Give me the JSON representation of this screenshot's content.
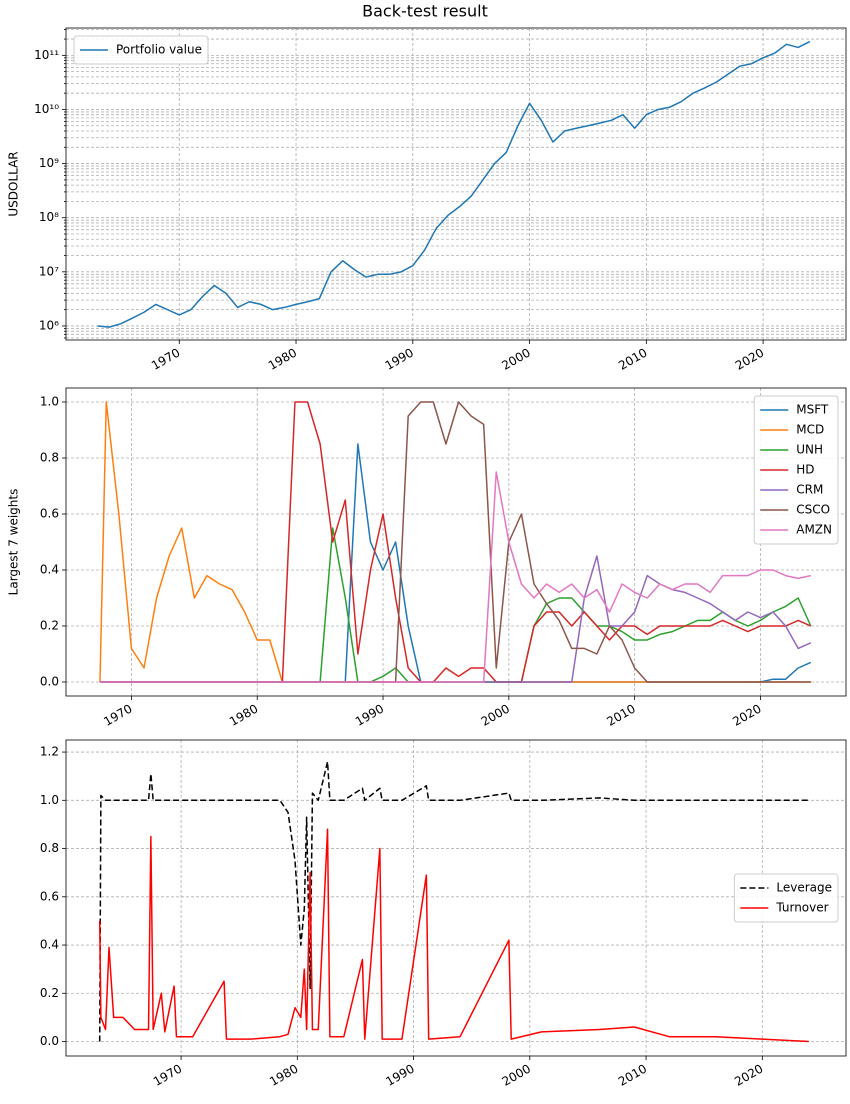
{
  "title": "Back-test result",
  "chart_data": [
    {
      "type": "line",
      "ylabel": "USDOLLAR",
      "yscale": "log",
      "grid": true,
      "legend": "upper left",
      "xlim": [
        1960.3,
        2027.1
      ],
      "xticks": [
        1970,
        1980,
        1990,
        2000,
        2010,
        2020
      ],
      "ylim": [
        550000,
        320000000000.0
      ],
      "yticks": [
        {
          "value": 1000000.0,
          "label": "10⁶"
        },
        {
          "value": 10000000.0,
          "label": "10⁷"
        },
        {
          "value": 100000000.0,
          "label": "10⁸"
        },
        {
          "value": 1000000000.0,
          "label": "10⁹"
        },
        {
          "value": 10000000000.0,
          "label": "10¹⁰"
        },
        {
          "value": 100000000000.0,
          "label": "10¹¹"
        }
      ],
      "yminorticks": [
        600000.0,
        700000.0,
        800000.0,
        900000.0,
        2000000.0,
        3000000.0,
        4000000.0,
        5000000.0,
        6000000.0,
        7000000.0,
        8000000.0,
        9000000.0,
        20000000.0,
        30000000.0,
        40000000.0,
        50000000.0,
        60000000.0,
        70000000.0,
        80000000.0,
        90000000.0,
        200000000.0,
        300000000.0,
        400000000.0,
        500000000.0,
        600000000.0,
        700000000.0,
        800000000.0,
        900000000.0,
        2000000000.0,
        3000000000.0,
        4000000000.0,
        5000000000.0,
        6000000000.0,
        7000000000.0,
        8000000000.0,
        9000000000.0,
        20000000000.0,
        30000000000.0,
        40000000000.0,
        50000000000.0,
        60000000000.0,
        70000000000.0,
        80000000000.0,
        90000000000.0,
        200000000000.0,
        300000000000.0
      ],
      "x": [
        1963,
        1964,
        1965,
        1966,
        1967,
        1968,
        1969,
        1970,
        1971,
        1972,
        1973,
        1974,
        1975,
        1976,
        1977,
        1978,
        1979,
        1980,
        1981,
        1982,
        1983,
        1984,
        1985,
        1986,
        1987,
        1988,
        1989,
        1990,
        1991,
        1992,
        1993,
        1994,
        1995,
        1996,
        1997,
        1998,
        1999,
        2000,
        2001,
        2002,
        2003,
        2004,
        2005,
        2006,
        2007,
        2008,
        2009,
        2010,
        2011,
        2012,
        2013,
        2014,
        2015,
        2016,
        2017,
        2018,
        2019,
        2020,
        2021,
        2022,
        2023,
        2024
      ],
      "series": [
        {
          "name": "Portfolio value",
          "color": "#1f77b4",
          "values": [
            1000000.0,
            950000.0,
            1100000.0,
            1400000.0,
            1800000.0,
            2500000.0,
            2000000.0,
            1600000.0,
            2000000.0,
            3500000.0,
            5600000.0,
            4000000.0,
            2200000.0,
            2800000.0,
            2500000.0,
            2000000.0,
            2200000.0,
            2500000.0,
            2800000.0,
            3200000.0,
            10000000.0,
            16000000.0,
            11000000.0,
            8000000.0,
            9000000.0,
            9000000.0,
            10000000.0,
            13000000.0,
            25000000.0,
            63000000.0,
            110000000.0,
            160000000.0,
            250000000.0,
            500000000.0,
            1000000000.0,
            1600000000.0,
            5000000000.0,
            13000000000.0,
            6300000000.0,
            2500000000.0,
            4000000000.0,
            4500000000.0,
            5000000000.0,
            5600000000.0,
            6300000000.0,
            8000000000.0,
            4500000000.0,
            8000000000.0,
            10000000000.0,
            11000000000.0,
            14000000000.0,
            20000000000.0,
            25000000000.0,
            32000000000.0,
            45000000000.0,
            63000000000.0,
            70000000000.0,
            90000000000.0,
            110000000000.0,
            160000000000.0,
            140000000000.0,
            180000000000.0
          ]
        }
      ]
    },
    {
      "type": "line",
      "ylabel": "Largest 7 weights",
      "grid": true,
      "legend": "upper right",
      "xlim": [
        1964.8,
        2026.8
      ],
      "xticks": [
        1970,
        1980,
        1990,
        2000,
        2010,
        2020
      ],
      "ylim": [
        -0.05,
        1.05
      ],
      "yticks": [
        {
          "value": 0,
          "label": "0.0"
        },
        {
          "value": 0.2,
          "label": "0.2"
        },
        {
          "value": 0.4,
          "label": "0.4"
        },
        {
          "value": 0.6,
          "label": "0.6"
        },
        {
          "value": 0.8,
          "label": "0.8"
        },
        {
          "value": 1,
          "label": "1.0"
        }
      ],
      "x": [
        1967.5,
        1968,
        1969,
        1970,
        1971,
        1972,
        1973,
        1974,
        1975,
        1976,
        1977,
        1978,
        1979,
        1980,
        1981,
        1982,
        1983,
        1984,
        1985,
        1986,
        1987,
        1988,
        1989,
        1990,
        1991,
        1992,
        1993,
        1994,
        1995,
        1996,
        1997,
        1998,
        1999,
        2000,
        2001,
        2002,
        2003,
        2004,
        2005,
        2006,
        2007,
        2008,
        2009,
        2010,
        2011,
        2012,
        2013,
        2014,
        2015,
        2016,
        2017,
        2018,
        2019,
        2020,
        2021,
        2022,
        2023,
        2024
      ],
      "series": [
        {
          "name": "MSFT",
          "color": "#1f77b4",
          "values": [
            0,
            0,
            0,
            0,
            0,
            0,
            0,
            0,
            0,
            0,
            0,
            0,
            0,
            0,
            0,
            0,
            0,
            0,
            0,
            0,
            0,
            0.85,
            0.5,
            0.4,
            0.5,
            0.2,
            0,
            0,
            0,
            0,
            0,
            0,
            0,
            0,
            0,
            0,
            0,
            0,
            0,
            0,
            0,
            0,
            0,
            0,
            0,
            0,
            0,
            0,
            0,
            0,
            0,
            0,
            0,
            0,
            0.01,
            0.01,
            0.05,
            0.07
          ]
        },
        {
          "name": "MCD",
          "color": "#ff7f0e",
          "values": [
            0,
            1.0,
            0.6,
            0.12,
            0.05,
            0.3,
            0.45,
            0.55,
            0.3,
            0.38,
            0.35,
            0.33,
            0.25,
            0.15,
            0.15,
            0,
            0,
            0,
            0,
            0,
            0,
            0,
            0,
            0,
            0,
            0,
            0,
            0,
            0,
            0,
            0,
            0,
            0,
            0,
            0,
            0,
            0,
            0,
            0,
            0,
            0,
            0,
            0,
            0,
            0,
            0,
            0,
            0,
            0,
            0,
            0,
            0,
            0,
            0,
            0,
            0,
            0,
            0
          ]
        },
        {
          "name": "UNH",
          "color": "#2ca02c",
          "values": [
            0,
            0,
            0,
            0,
            0,
            0,
            0,
            0,
            0,
            0,
            0,
            0,
            0,
            0,
            0,
            0,
            0,
            0,
            0,
            0.55,
            0.3,
            0,
            0,
            0.02,
            0.05,
            0,
            0,
            0,
            0,
            0,
            0,
            0,
            0,
            0,
            0,
            0.2,
            0.28,
            0.3,
            0.3,
            0.25,
            0.2,
            0.2,
            0.18,
            0.15,
            0.15,
            0.17,
            0.18,
            0.2,
            0.22,
            0.22,
            0.25,
            0.22,
            0.2,
            0.22,
            0.25,
            0.27,
            0.3,
            0.2
          ]
        },
        {
          "name": "HD",
          "color": "#d62728",
          "values": [
            0,
            0,
            0,
            0,
            0,
            0,
            0,
            0,
            0,
            0,
            0,
            0,
            0,
            0,
            0,
            0,
            1.0,
            1.0,
            0.85,
            0.5,
            0.65,
            0.1,
            0.4,
            0.6,
            0.3,
            0.05,
            0,
            0,
            0.05,
            0.02,
            0.05,
            0.05,
            0,
            0,
            0,
            0.2,
            0.25,
            0.25,
            0.2,
            0.25,
            0.2,
            0.15,
            0.2,
            0.2,
            0.17,
            0.2,
            0.2,
            0.2,
            0.2,
            0.2,
            0.22,
            0.2,
            0.18,
            0.2,
            0.2,
            0.2,
            0.22,
            0.2
          ]
        },
        {
          "name": "CRM",
          "color": "#9467bd",
          "values": [
            0,
            0,
            0,
            0,
            0,
            0,
            0,
            0,
            0,
            0,
            0,
            0,
            0,
            0,
            0,
            0,
            0,
            0,
            0,
            0,
            0,
            0,
            0,
            0,
            0,
            0,
            0,
            0,
            0,
            0,
            0,
            0,
            0,
            0,
            0,
            0,
            0,
            0,
            0,
            0.3,
            0.45,
            0.2,
            0.2,
            0.25,
            0.38,
            0.35,
            0.33,
            0.32,
            0.3,
            0.28,
            0.25,
            0.22,
            0.25,
            0.23,
            0.25,
            0.2,
            0.12,
            0.14
          ]
        },
        {
          "name": "CSCO",
          "color": "#8c564b",
          "values": [
            0,
            0,
            0,
            0,
            0,
            0,
            0,
            0,
            0,
            0,
            0,
            0,
            0,
            0,
            0,
            0,
            0,
            0,
            0,
            0,
            0,
            0,
            0,
            0,
            0,
            0.95,
            1.0,
            1.0,
            0.85,
            1.0,
            0.95,
            0.92,
            0.05,
            0.5,
            0.6,
            0.35,
            0.28,
            0.22,
            0.12,
            0.12,
            0.1,
            0.2,
            0.15,
            0.05,
            0,
            0,
            0,
            0,
            0,
            0,
            0,
            0,
            0,
            0,
            0,
            0,
            0,
            0
          ]
        },
        {
          "name": "AMZN",
          "color": "#e377c2",
          "values": [
            0,
            0,
            0,
            0,
            0,
            0,
            0,
            0,
            0,
            0,
            0,
            0,
            0,
            0,
            0,
            0,
            0,
            0,
            0,
            0,
            0,
            0,
            0,
            0,
            0,
            0,
            0,
            0,
            0,
            0,
            0,
            0,
            0.75,
            0.5,
            0.35,
            0.3,
            0.35,
            0.32,
            0.35,
            0.3,
            0.33,
            0.25,
            0.35,
            0.32,
            0.3,
            0.35,
            0.33,
            0.35,
            0.35,
            0.32,
            0.38,
            0.38,
            0.38,
            0.4,
            0.4,
            0.38,
            0.37,
            0.38
          ]
        }
      ]
    },
    {
      "type": "line",
      "grid": true,
      "legend": "center right",
      "xlim": [
        1960.1,
        2027.2
      ],
      "xticks": [
        1970,
        1980,
        1990,
        2000,
        2010,
        2020
      ],
      "ylim": [
        -0.06,
        1.25
      ],
      "yticks": [
        {
          "value": 0,
          "label": "0.0"
        },
        {
          "value": 0.2,
          "label": "0.2"
        },
        {
          "value": 0.4,
          "label": "0.4"
        },
        {
          "value": 0.6,
          "label": "0.6"
        },
        {
          "value": 0.8,
          "label": "0.8"
        },
        {
          "value": 1,
          "label": "1.0"
        },
        {
          "value": 1.2,
          "label": "1.2"
        }
      ],
      "x": [
        1963.0,
        1963.1,
        1963.5,
        1963.8,
        1964.2,
        1965,
        1966,
        1967.2,
        1967.4,
        1967.6,
        1968.3,
        1968.6,
        1969.4,
        1969.6,
        1971,
        1973.7,
        1973.9,
        1976,
        1978.5,
        1979.2,
        1979.8,
        1980.3,
        1980.6,
        1980.8,
        1981.1,
        1981.3,
        1981.8,
        1982.6,
        1982.8,
        1984,
        1985.6,
        1985.8,
        1987.1,
        1987.3,
        1989,
        1991.1,
        1991.3,
        1994,
        1998.2,
        1998.4,
        2001,
        2006,
        2009,
        2012,
        2016,
        2020,
        2024
      ],
      "series": [
        {
          "name": "Leverage",
          "color": "#000000",
          "linestyle": "dashed",
          "values": [
            0,
            1.02,
            1,
            1,
            1,
            1,
            1,
            1,
            1.11,
            1,
            1,
            1,
            1,
            1,
            1,
            1,
            1,
            1,
            1,
            0.95,
            0.75,
            0.4,
            0.55,
            0.93,
            0.22,
            1.03,
            1,
            1.16,
            1,
            1,
            1.05,
            1,
            1.05,
            1,
            1,
            1.06,
            1,
            1,
            1.03,
            1,
            1,
            1.01,
            1,
            1,
            1,
            1,
            1
          ]
        },
        {
          "name": "Turnover",
          "color": "#ff0000",
          "values": [
            0.5,
            0.1,
            0.05,
            0.39,
            0.1,
            0.1,
            0.05,
            0.05,
            0.85,
            0.05,
            0.2,
            0.04,
            0.23,
            0.02,
            0.02,
            0.25,
            0.01,
            0.01,
            0.02,
            0.03,
            0.14,
            0.1,
            0.3,
            0.05,
            0.7,
            0.05,
            0.05,
            0.88,
            0.02,
            0.02,
            0.34,
            0.01,
            0.8,
            0.01,
            0.01,
            0.69,
            0.01,
            0.02,
            0.42,
            0.01,
            0.04,
            0.05,
            0.06,
            0.02,
            0.02,
            0.01,
            0.0
          ]
        }
      ]
    }
  ]
}
